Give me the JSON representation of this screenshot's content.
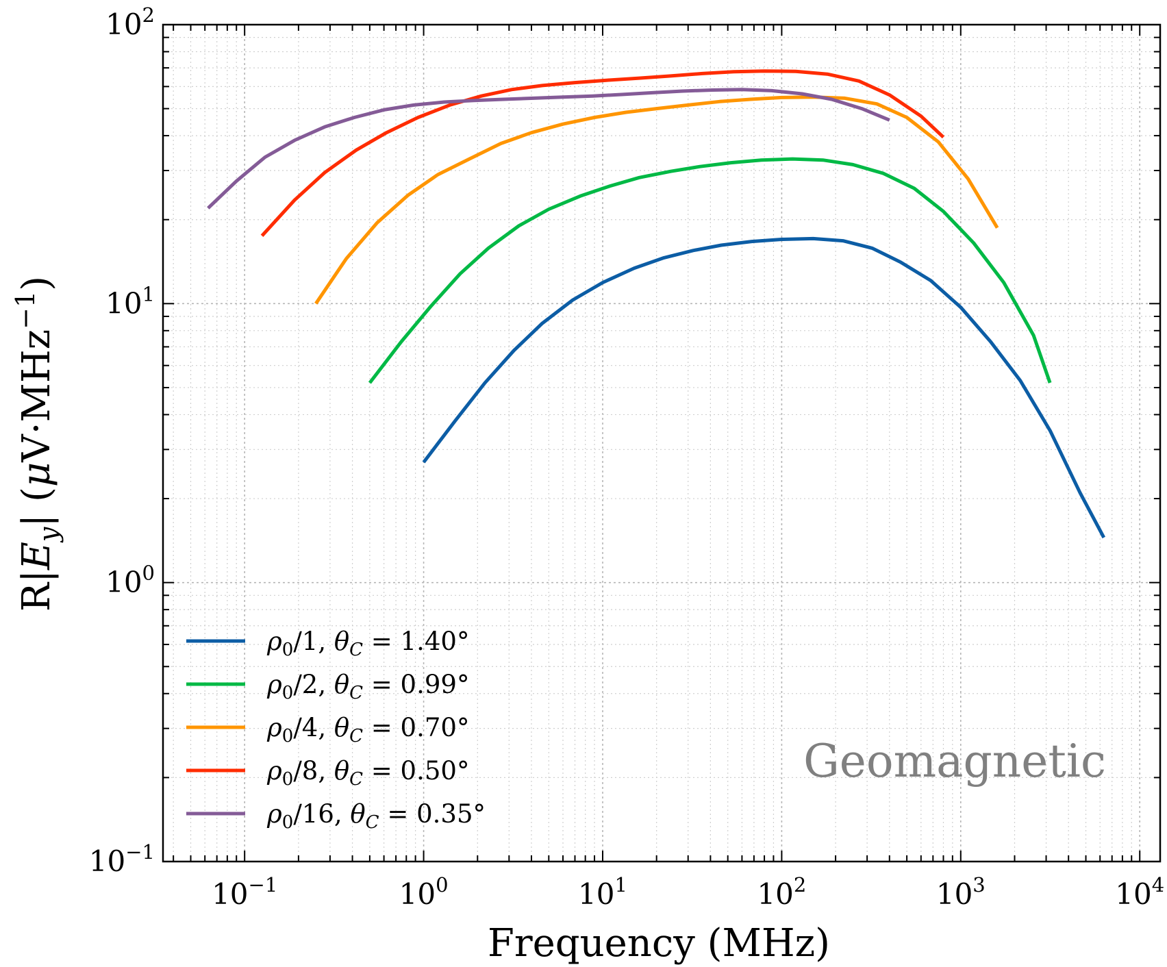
{
  "chart_data": {
    "type": "line",
    "title": "",
    "xlabel": "Frequency (MHz)",
    "ylabel": "R|E_y| (μV·MHz⁻¹)",
    "ylabel_parts": {
      "lead": "R|",
      "var": "E",
      "sub": "y",
      "mid": "| (",
      "mu": "μ",
      "unit": "V·MHz",
      "exp": "−1",
      "close": ")"
    },
    "xscale": "log",
    "yscale": "log",
    "xlim": [
      0.035,
      13000
    ],
    "ylim": [
      0.1,
      100
    ],
    "grid": true,
    "legend_position": "lower-left",
    "annotation": "Geomagnetic",
    "x_ticks": [
      {
        "value": 0.1,
        "base": "10",
        "exp": "−1"
      },
      {
        "value": 1,
        "base": "10",
        "exp": "0"
      },
      {
        "value": 10,
        "base": "10",
        "exp": "1"
      },
      {
        "value": 100,
        "base": "10",
        "exp": "2"
      },
      {
        "value": 1000,
        "base": "10",
        "exp": "3"
      },
      {
        "value": 10000,
        "base": "10",
        "exp": "4"
      }
    ],
    "y_ticks": [
      {
        "value": 0.1,
        "base": "10",
        "exp": "−1"
      },
      {
        "value": 1,
        "base": "10",
        "exp": "0"
      },
      {
        "value": 10,
        "base": "10",
        "exp": "1"
      },
      {
        "value": 100,
        "base": "10",
        "exp": "2"
      }
    ],
    "series": [
      {
        "name": "ρ0/1, θC = 1.40°",
        "label": {
          "rho": "ρ",
          "rho_sub": "0",
          "div": "/1, ",
          "theta": "θ",
          "theta_sub": "C",
          "value": " = 1.40°"
        },
        "color": "#0c5da5",
        "x": [
          1.0,
          1.5,
          2.2,
          3.2,
          4.6,
          6.8,
          10,
          15,
          22,
          32,
          46,
          68,
          100,
          150,
          220,
          320,
          460,
          680,
          1000,
          1470,
          2150,
          3160,
          4640,
          6300
        ],
        "y": [
          2.7,
          3.8,
          5.2,
          6.8,
          8.5,
          10.3,
          11.9,
          13.4,
          14.6,
          15.5,
          16.2,
          16.7,
          17.0,
          17.1,
          16.8,
          15.8,
          14.1,
          12.1,
          9.7,
          7.3,
          5.3,
          3.5,
          2.1,
          1.45
        ]
      },
      {
        "name": "ρ0/2, θC = 0.99°",
        "label": {
          "rho": "ρ",
          "rho_sub": "0",
          "div": "/2, ",
          "theta": "θ",
          "theta_sub": "C",
          "value": " = 0.99°"
        },
        "color": "#00b945",
        "x": [
          0.5,
          0.75,
          1.1,
          1.6,
          2.3,
          3.4,
          5.0,
          7.5,
          11,
          16,
          24,
          35,
          52,
          77,
          115,
          170,
          250,
          370,
          550,
          800,
          1180,
          1740,
          2550,
          3150
        ],
        "y": [
          5.2,
          7.3,
          9.8,
          12.8,
          15.8,
          19.0,
          21.8,
          24.3,
          26.4,
          28.3,
          29.8,
          31.0,
          32.0,
          32.7,
          33.0,
          32.7,
          31.5,
          29.3,
          25.9,
          21.4,
          16.5,
          11.9,
          7.7,
          5.2
        ]
      },
      {
        "name": "ρ0/4, θC = 0.70°",
        "label": {
          "rho": "ρ",
          "rho_sub": "0",
          "div": "/4, ",
          "theta": "θ",
          "theta_sub": "C",
          "value": " = 0.70°"
        },
        "color": "#ff9500",
        "x": [
          0.25,
          0.37,
          0.55,
          0.82,
          1.2,
          1.8,
          2.7,
          4.0,
          6.0,
          9.0,
          13.5,
          20,
          30,
          45,
          67,
          100,
          150,
          225,
          340,
          500,
          750,
          1100,
          1600
        ],
        "y": [
          10.0,
          14.5,
          19.5,
          24.5,
          29.0,
          33.0,
          37.5,
          41.0,
          44.0,
          46.5,
          48.5,
          50.0,
          51.5,
          53.0,
          54.0,
          54.8,
          55.0,
          54.5,
          52.0,
          46.5,
          38.0,
          28.0,
          18.7
        ]
      },
      {
        "name": "ρ0/8, θC = 0.50°",
        "label": {
          "rho": "ρ",
          "rho_sub": "0",
          "div": "/8, ",
          "theta": "θ",
          "theta_sub": "C",
          "value": " = 0.50°"
        },
        "color": "#ff2c00",
        "x": [
          0.125,
          0.19,
          0.28,
          0.42,
          0.62,
          0.93,
          1.4,
          2.1,
          3.1,
          4.6,
          7.0,
          10.5,
          16,
          24,
          36,
          54,
          80,
          120,
          180,
          270,
          400,
          600,
          800
        ],
        "y": [
          17.5,
          23.5,
          29.5,
          35.5,
          41.0,
          46.5,
          51.5,
          55.5,
          58.5,
          60.5,
          62.0,
          63.2,
          64.3,
          65.5,
          66.8,
          67.8,
          68.2,
          68.0,
          66.5,
          62.8,
          56.0,
          47.0,
          39.5
        ]
      },
      {
        "name": "ρ0/16, θC = 0.35°",
        "label": {
          "rho": "ρ",
          "rho_sub": "0",
          "div": "/16, ",
          "theta": "θ",
          "theta_sub": "C",
          "value": " = 0.35°"
        },
        "color": "#845b97",
        "x": [
          0.0625,
          0.09,
          0.13,
          0.19,
          0.28,
          0.41,
          0.6,
          0.88,
          1.3,
          1.9,
          2.8,
          4.1,
          6.0,
          8.8,
          13,
          19,
          28,
          41,
          60,
          88,
          130,
          190,
          280,
          400
        ],
        "y": [
          22.0,
          27.5,
          33.5,
          38.5,
          43.0,
          46.5,
          49.5,
          51.5,
          52.8,
          53.5,
          54.0,
          54.5,
          55.0,
          55.5,
          56.2,
          57.0,
          57.8,
          58.3,
          58.5,
          58.0,
          56.5,
          54.0,
          50.0,
          45.5
        ]
      }
    ]
  }
}
